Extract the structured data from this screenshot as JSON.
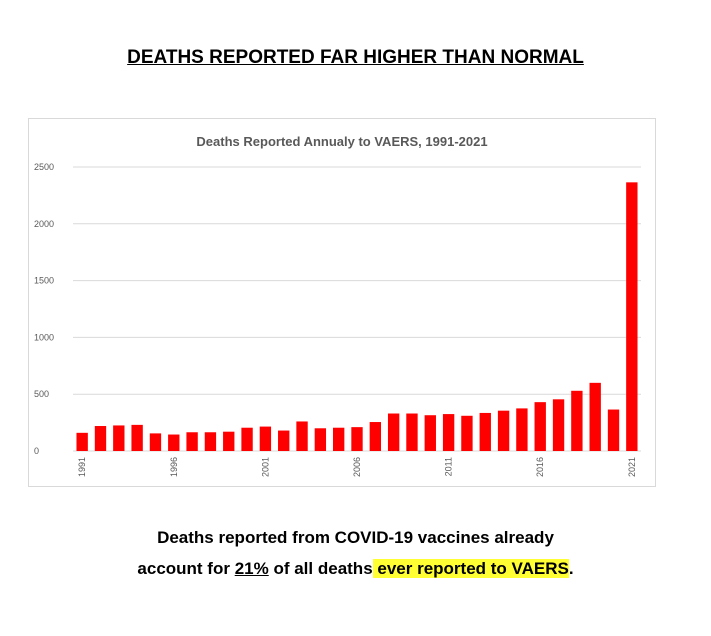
{
  "headline": "DEATHS REPORTED FAR HIGHER THAN NORMAL",
  "caption": {
    "line1": "Deaths reported from COVID-19 vaccines already",
    "line2_prefix": "account for ",
    "line2_percent": "21%",
    "line2_middle": " of all deaths",
    "line2_highlight": " ever reported to VAERS",
    "line2_end": "."
  },
  "colors": {
    "bar": "#ff0000",
    "highlight": "#ffff33",
    "grid": "#d9d9d9"
  },
  "chart_data": {
    "type": "bar",
    "title": "Deaths Reported Annualy to VAERS, 1991-2021",
    "xlabel": "",
    "ylabel": "",
    "ylim": [
      0,
      2500
    ],
    "yticks": [
      0,
      500,
      1000,
      1500,
      2000,
      2500
    ],
    "grid": true,
    "legend": "none",
    "categories": [
      "1991",
      "1992",
      "1993",
      "1994",
      "1995",
      "1996",
      "1997",
      "1998",
      "1999",
      "2000",
      "2001",
      "2002",
      "2003",
      "2004",
      "2005",
      "2006",
      "2007",
      "2008",
      "2009",
      "2010",
      "2011",
      "2012",
      "2013",
      "2014",
      "2015",
      "2016",
      "2017",
      "2018",
      "2019",
      "2020",
      "2021"
    ],
    "x_tick_labels": [
      "1991",
      "1996",
      "2001",
      "2006",
      "2011",
      "2016",
      "2021"
    ],
    "values": [
      160,
      220,
      225,
      230,
      155,
      145,
      165,
      165,
      170,
      205,
      215,
      180,
      260,
      200,
      205,
      210,
      255,
      330,
      330,
      315,
      325,
      310,
      335,
      355,
      375,
      430,
      455,
      530,
      600,
      365,
      2365
    ]
  }
}
